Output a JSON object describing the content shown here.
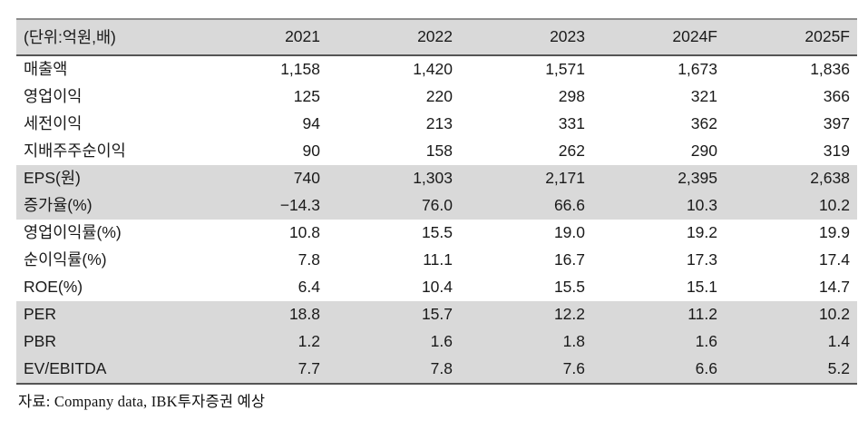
{
  "chart_data": {
    "type": "table",
    "unit_label": "(단위:억원,배)",
    "columns": [
      "2021",
      "2022",
      "2023",
      "2024F",
      "2025F"
    ],
    "rows": [
      {
        "label": "매출액",
        "values": [
          "1,158",
          "1,420",
          "1,571",
          "1,673",
          "1,836"
        ],
        "shaded": false
      },
      {
        "label": "영업이익",
        "values": [
          "125",
          "220",
          "298",
          "321",
          "366"
        ],
        "shaded": false
      },
      {
        "label": "세전이익",
        "values": [
          "94",
          "213",
          "331",
          "362",
          "397"
        ],
        "shaded": false
      },
      {
        "label": "지배주주순이익",
        "values": [
          "90",
          "158",
          "262",
          "290",
          "319"
        ],
        "shaded": false
      },
      {
        "label": "EPS(원)",
        "values": [
          "740",
          "1,303",
          "2,171",
          "2,395",
          "2,638"
        ],
        "shaded": true
      },
      {
        "label": "증가율(%)",
        "values": [
          "−14.3",
          "76.0",
          "66.6",
          "10.3",
          "10.2"
        ],
        "shaded": true
      },
      {
        "label": "영업이익률(%)",
        "values": [
          "10.8",
          "15.5",
          "19.0",
          "19.2",
          "19.9"
        ],
        "shaded": false
      },
      {
        "label": "순이익률(%)",
        "values": [
          "7.8",
          "11.1",
          "16.7",
          "17.3",
          "17.4"
        ],
        "shaded": false
      },
      {
        "label": "ROE(%)",
        "values": [
          "6.4",
          "10.4",
          "15.5",
          "15.1",
          "14.7"
        ],
        "shaded": false
      },
      {
        "label": "PER",
        "values": [
          "18.8",
          "15.7",
          "12.2",
          "11.2",
          "10.2"
        ],
        "shaded": true
      },
      {
        "label": "PBR",
        "values": [
          "1.2",
          "1.6",
          "1.8",
          "1.6",
          "1.4"
        ],
        "shaded": true
      },
      {
        "label": "EV/EBITDA",
        "values": [
          "7.7",
          "7.8",
          "7.6",
          "6.6",
          "5.2"
        ],
        "shaded": true
      }
    ],
    "source": "자료: Company data, IBK투자증권 예상"
  },
  "colors": {
    "band_gray": "#d9d9d9",
    "border_top": "#8c8c8c",
    "border_dark": "#555555",
    "text": "#1a1a1a"
  }
}
